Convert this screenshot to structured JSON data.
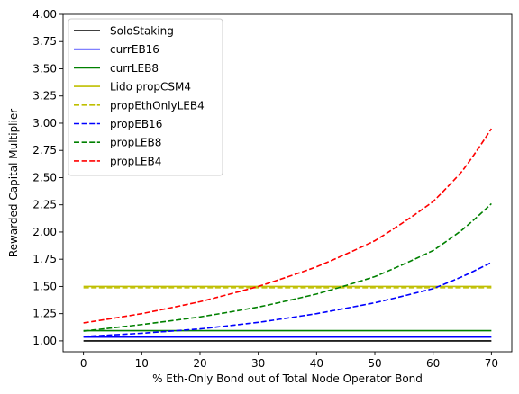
{
  "chart_data": {
    "type": "line",
    "xlabel": "% Eth-Only Bond out of Total Node Operator Bond",
    "ylabel": "Rewarded Capital Multiplier",
    "xlim": [
      -3.5,
      73.5
    ],
    "ylim": [
      0.9,
      4.0
    ],
    "xticks": [
      0,
      10,
      20,
      30,
      40,
      50,
      60,
      70
    ],
    "yticks": [
      1.0,
      1.25,
      1.5,
      1.75,
      2.0,
      2.25,
      2.5,
      2.75,
      3.0,
      3.25,
      3.5,
      3.75,
      4.0
    ],
    "ytick_labels": [
      "1.00",
      "1.25",
      "1.50",
      "1.75",
      "2.00",
      "2.25",
      "2.50",
      "2.75",
      "3.00",
      "3.25",
      "3.50",
      "3.75",
      "4.00"
    ],
    "xtick_labels": [
      "0",
      "10",
      "20",
      "30",
      "40",
      "50",
      "60",
      "70"
    ],
    "grid": false,
    "legend_position": "top-left",
    "series": [
      {
        "name": "SoloStaking",
        "color": "#000000",
        "style": "solid",
        "x": [
          0,
          70
        ],
        "y": [
          1.0,
          1.0
        ]
      },
      {
        "name": "currEB16",
        "color": "#0000ff",
        "style": "solid",
        "x": [
          0,
          70
        ],
        "y": [
          1.035,
          1.035
        ]
      },
      {
        "name": "currLEB8",
        "color": "#008000",
        "style": "solid",
        "x": [
          0,
          70
        ],
        "y": [
          1.094,
          1.094
        ]
      },
      {
        "name": "Lido propCSM4",
        "color": "#bfbf00",
        "style": "solid",
        "x": [
          0,
          70
        ],
        "y": [
          1.5,
          1.5
        ]
      },
      {
        "name": "propEthOnlyLEB4",
        "color": "#bfbf00",
        "style": "dashed",
        "x": [
          0,
          70
        ],
        "y": [
          1.488,
          1.488
        ]
      },
      {
        "name": "propEB16",
        "color": "#0000ff",
        "style": "dashed",
        "x": [
          0,
          10,
          20,
          30,
          40,
          50,
          60,
          65,
          70
        ],
        "y": [
          1.04,
          1.07,
          1.11,
          1.17,
          1.25,
          1.35,
          1.48,
          1.59,
          1.72
        ]
      },
      {
        "name": "propLEB8",
        "color": "#008000",
        "style": "dashed",
        "x": [
          0,
          10,
          20,
          30,
          40,
          50,
          60,
          65,
          70
        ],
        "y": [
          1.09,
          1.15,
          1.22,
          1.31,
          1.43,
          1.59,
          1.83,
          2.02,
          2.26
        ]
      },
      {
        "name": "propLEB4",
        "color": "#ff0000",
        "style": "dashed",
        "x": [
          0,
          10,
          20,
          30,
          40,
          50,
          60,
          65,
          70
        ],
        "y": [
          1.165,
          1.25,
          1.36,
          1.5,
          1.68,
          1.92,
          2.28,
          2.56,
          2.95
        ]
      }
    ]
  }
}
